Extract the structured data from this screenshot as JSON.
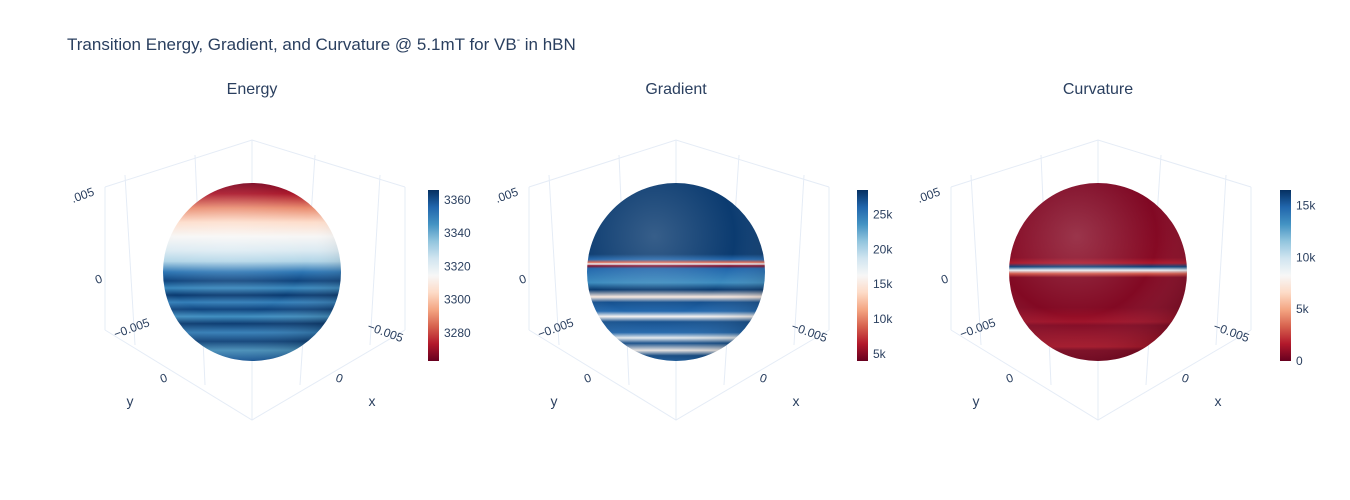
{
  "chart_data": {
    "type": "surface",
    "title": {
      "main": "Transition Energy, Gradient, and Curvature @ 5.1mT for VB",
      "sup": "-",
      "tail": " in hBN"
    },
    "colorscale": [
      "#67001f",
      "#b2182b",
      "#d6604d",
      "#f4a582",
      "#fddbc7",
      "#f7f7f7",
      "#d1e5f0",
      "#92c5de",
      "#4393c3",
      "#2166ac",
      "#053061"
    ],
    "subplots": [
      {
        "name": "Energy",
        "title": "Energy",
        "axis_ticks": {
          "z_top": ".005",
          "z_mid": "0",
          "y_neg": "−0.005",
          "y_zero": "0",
          "x_zero": "0",
          "x_neg": "−0.005",
          "ylabel": "y",
          "xlabel": "x"
        },
        "colorbar": {
          "range": [
            3263,
            3366
          ],
          "ticks": [
            "3360",
            "3340",
            "3320",
            "3300",
            "3280"
          ],
          "tick_values": [
            3360,
            3340,
            3320,
            3300,
            3280
          ]
        },
        "bands": [
          [
            0.0,
            3266
          ],
          [
            0.06,
            3272
          ],
          [
            0.14,
            3290
          ],
          [
            0.22,
            3305
          ],
          [
            0.3,
            3314
          ],
          [
            0.38,
            3322
          ],
          [
            0.44,
            3330
          ],
          [
            0.5,
            3352
          ],
          [
            0.55,
            3362
          ],
          [
            0.59,
            3348
          ],
          [
            0.63,
            3364
          ],
          [
            0.67,
            3350
          ],
          [
            0.71,
            3362
          ],
          [
            0.75,
            3346
          ],
          [
            0.79,
            3364
          ],
          [
            0.84,
            3350
          ],
          [
            0.89,
            3362
          ],
          [
            0.94,
            3344
          ],
          [
            1.0,
            3356
          ]
        ]
      },
      {
        "name": "Gradient",
        "title": "Gradient",
        "axis_ticks": {
          "z_top": ".005",
          "z_mid": "0",
          "y_neg": "−0.005",
          "y_zero": "0",
          "x_zero": "0",
          "x_neg": "−0.005",
          "ylabel": "y",
          "xlabel": "x"
        },
        "colorbar": {
          "range": [
            4000,
            28500
          ],
          "ticks": [
            "25k",
            "20k",
            "15k",
            "10k",
            "5k"
          ],
          "tick_values": [
            25000,
            20000,
            15000,
            10000,
            5000
          ]
        },
        "bands": [
          [
            0.0,
            28000
          ],
          [
            0.4,
            28000
          ],
          [
            0.43,
            26000
          ],
          [
            0.445,
            9000
          ],
          [
            0.455,
            17000
          ],
          [
            0.465,
            5000
          ],
          [
            0.48,
            26000
          ],
          [
            0.56,
            24000
          ],
          [
            0.6,
            28000
          ],
          [
            0.64,
            15000
          ],
          [
            0.67,
            27000
          ],
          [
            0.72,
            26000
          ],
          [
            0.75,
            16000
          ],
          [
            0.78,
            27000
          ],
          [
            0.84,
            26000
          ],
          [
            0.87,
            17000
          ],
          [
            0.9,
            27000
          ],
          [
            0.94,
            16000
          ],
          [
            0.97,
            27000
          ],
          [
            1.0,
            26000
          ]
        ]
      },
      {
        "name": "Curvature",
        "title": "Curvature",
        "axis_ticks": {
          "z_top": ".005",
          "z_mid": "0",
          "y_neg": "−0.005",
          "y_zero": "0",
          "x_zero": "0",
          "x_neg": "−0.005",
          "ylabel": "y",
          "xlabel": "x"
        },
        "colorbar": {
          "range": [
            0,
            16500
          ],
          "ticks": [
            "15k",
            "10k",
            "5k",
            "0"
          ],
          "tick_values": [
            15000,
            10000,
            5000,
            0
          ]
        },
        "bands": [
          [
            0.0,
            500
          ],
          [
            0.42,
            700
          ],
          [
            0.45,
            1500
          ],
          [
            0.47,
            16000
          ],
          [
            0.49,
            9000
          ],
          [
            0.51,
            3000
          ],
          [
            0.53,
            600
          ],
          [
            0.7,
            600
          ],
          [
            0.78,
            1200
          ],
          [
            0.8,
            600
          ],
          [
            0.92,
            1500
          ],
          [
            0.94,
            600
          ],
          [
            1.0,
            500
          ]
        ]
      }
    ]
  }
}
